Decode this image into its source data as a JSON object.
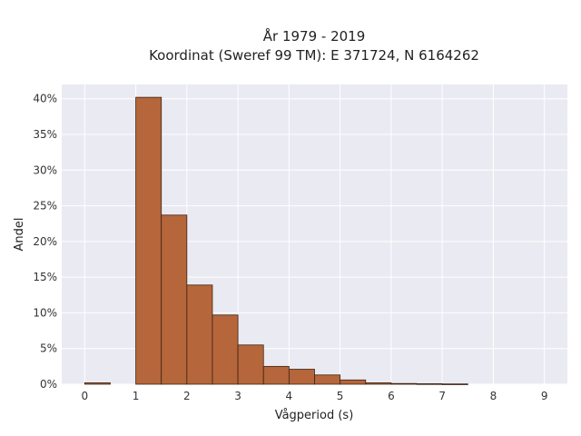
{
  "chart_data": {
    "type": "bar",
    "title_line1": "År 1979 - 2019",
    "title_line2": "Koordinat (Sweref 99 TM): E 371724, N 6164262",
    "xlabel": "Vågperiod (s)",
    "ylabel": "Andel",
    "bin_width": 0.5,
    "bins": [
      {
        "start": 0.0,
        "value": 0.002
      },
      {
        "start": 0.5,
        "value": 0.0
      },
      {
        "start": 1.0,
        "value": 0.402
      },
      {
        "start": 1.5,
        "value": 0.237
      },
      {
        "start": 2.0,
        "value": 0.139
      },
      {
        "start": 2.5,
        "value": 0.097
      },
      {
        "start": 3.0,
        "value": 0.055
      },
      {
        "start": 3.5,
        "value": 0.025
      },
      {
        "start": 4.0,
        "value": 0.021
      },
      {
        "start": 4.5,
        "value": 0.013
      },
      {
        "start": 5.0,
        "value": 0.006
      },
      {
        "start": 5.5,
        "value": 0.002
      },
      {
        "start": 6.0,
        "value": 0.001
      },
      {
        "start": 6.5,
        "value": 0.0007
      },
      {
        "start": 7.0,
        "value": 0.0004
      }
    ],
    "xlim": [
      -0.45,
      9.45
    ],
    "ylim": [
      0,
      0.42
    ],
    "x_ticks": [
      0,
      1,
      2,
      3,
      4,
      5,
      6,
      7,
      8,
      9
    ],
    "x_tick_labels": [
      "0",
      "1",
      "2",
      "3",
      "4",
      "5",
      "6",
      "7",
      "8",
      "9"
    ],
    "y_ticks": [
      0,
      0.05,
      0.1,
      0.15,
      0.2,
      0.25,
      0.3,
      0.35,
      0.4
    ],
    "y_tick_labels": [
      "0%",
      "5%",
      "10%",
      "15%",
      "20%",
      "25%",
      "30%",
      "35%",
      "40%"
    ],
    "grid": true,
    "legend": "none",
    "colors": {
      "bar_fill": "#b5663a",
      "bar_edge": "#3d2314",
      "plot_background": "#eaeaf2",
      "grid": "#ffffff"
    }
  }
}
